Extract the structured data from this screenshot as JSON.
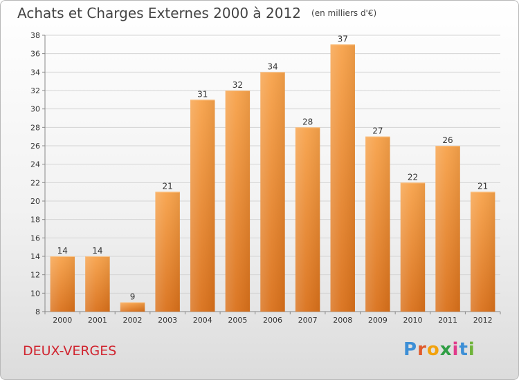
{
  "title": "Achats et Charges Externes 2000 à 2012",
  "unit_note": "(en milliers d'€)",
  "commune": "DEUX-VERGES",
  "logo": {
    "letters": [
      "P",
      "r",
      "o",
      "x",
      "i",
      "t",
      "i"
    ],
    "colors": [
      "#3d8fd6",
      "#e05a2b",
      "#f2a20d",
      "#2f9e44",
      "#e03b8b",
      "#3d8fd6",
      "#6fb33a"
    ]
  },
  "chart_data": {
    "type": "bar",
    "title": "Achats et Charges Externes 2000 à 2012",
    "xlabel": "",
    "ylabel": "",
    "categories": [
      "2000",
      "2001",
      "2002",
      "2003",
      "2004",
      "2005",
      "2006",
      "2007",
      "2008",
      "2009",
      "2010",
      "2011",
      "2012"
    ],
    "values": [
      14,
      14,
      9,
      21,
      31,
      32,
      34,
      28,
      37,
      27,
      22,
      26,
      21
    ],
    "ylim": [
      8,
      38
    ],
    "yticks": [
      8,
      10,
      12,
      14,
      16,
      18,
      20,
      22,
      24,
      26,
      28,
      30,
      32,
      34,
      36,
      38
    ],
    "grid": true,
    "bar_color": "#f28c28"
  }
}
